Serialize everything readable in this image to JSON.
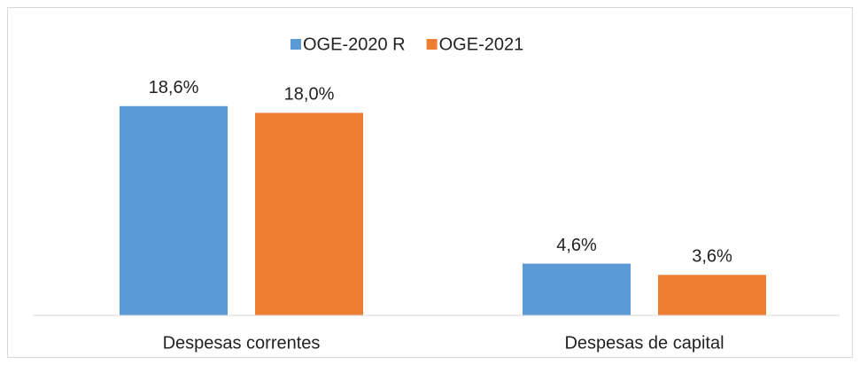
{
  "chart_data": {
    "type": "bar",
    "categories": [
      "Despesas correntes",
      "Despesas de capital"
    ],
    "series": [
      {
        "name": "OGE-2020 R",
        "color": "#5b9bd5",
        "values": [
          18.6,
          4.6
        ],
        "value_labels": [
          "18,6%",
          "4,6%"
        ]
      },
      {
        "name": "OGE-2021",
        "color": "#ed7d31",
        "values": [
          18.0,
          3.6
        ],
        "value_labels": [
          "18,0%",
          "3,6%"
        ]
      }
    ],
    "ylim": [
      0,
      20
    ],
    "legend": "top"
  }
}
